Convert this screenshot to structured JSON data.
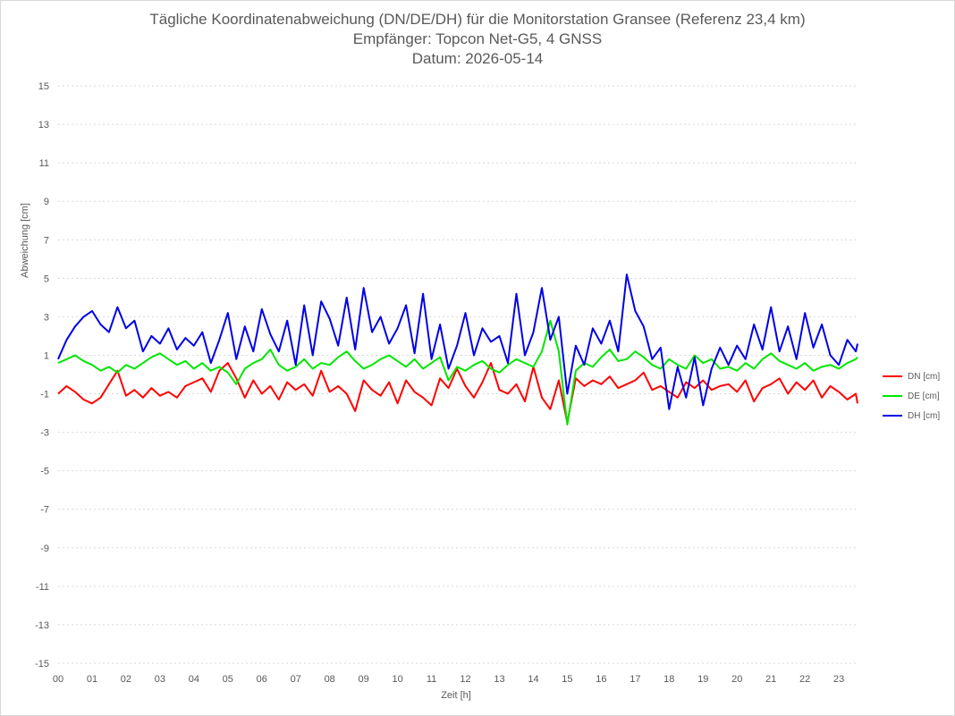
{
  "chart_data": {
    "type": "line",
    "title": "Tägliche Koordinatenabweichung (DN/DE/DH) für die Monitorstation Gransee (Referenz 23,4 km)",
    "subtitle": "Empfänger: Topcon Net-G5, 4 GNSS",
    "subtitle2": "Datum: 2026-05-14",
    "xlabel": "Zeit [h]",
    "ylabel": "Abweichung [cm]",
    "x_ticks": [
      "00",
      "01",
      "02",
      "03",
      "04",
      "05",
      "06",
      "07",
      "08",
      "09",
      "10",
      "11",
      "12",
      "13",
      "14",
      "15",
      "16",
      "17",
      "18",
      "19",
      "20",
      "21",
      "22",
      "23"
    ],
    "y_ticks": [
      "15",
      "13",
      "11",
      "9",
      "7",
      "5",
      "3",
      "1",
      "-1",
      "-3",
      "-5",
      "-7",
      "-9",
      "-11",
      "-13",
      "-15"
    ],
    "xlim": [
      0,
      23.55
    ],
    "ylim": [
      -15,
      15
    ],
    "grid": true,
    "legend_position": "right",
    "series": [
      {
        "name": "DN [cm]",
        "color": "#ff0000",
        "x": [
          0,
          0.25,
          0.5,
          0.75,
          1,
          1.25,
          1.5,
          1.75,
          2,
          2.25,
          2.5,
          2.75,
          3,
          3.25,
          3.5,
          3.75,
          4,
          4.25,
          4.5,
          4.75,
          5,
          5.25,
          5.5,
          5.75,
          6,
          6.25,
          6.5,
          6.75,
          7,
          7.25,
          7.5,
          7.75,
          8,
          8.25,
          8.5,
          8.75,
          9,
          9.25,
          9.5,
          9.75,
          10,
          10.25,
          10.5,
          10.75,
          11,
          11.25,
          11.5,
          11.75,
          12,
          12.25,
          12.5,
          12.75,
          13,
          13.25,
          13.5,
          13.75,
          14,
          14.25,
          14.5,
          14.75,
          15,
          15.25,
          15.5,
          15.75,
          16,
          16.25,
          16.5,
          16.75,
          17,
          17.25,
          17.5,
          17.75,
          18,
          18.25,
          18.5,
          18.75,
          19,
          19.25,
          19.5,
          19.75,
          20,
          20.25,
          20.5,
          20.75,
          21,
          21.25,
          21.5,
          21.75,
          22,
          22.25,
          22.5,
          22.75,
          23,
          23.25,
          23.5,
          23.55
        ],
        "values": [
          -1.0,
          -0.6,
          -0.9,
          -1.3,
          -1.5,
          -1.2,
          -0.5,
          0.2,
          -1.1,
          -0.8,
          -1.2,
          -0.7,
          -1.1,
          -0.9,
          -1.2,
          -0.6,
          -0.4,
          -0.2,
          -0.9,
          0.2,
          0.6,
          -0.2,
          -1.2,
          -0.3,
          -1.0,
          -0.6,
          -1.3,
          -0.4,
          -0.8,
          -0.5,
          -1.1,
          0.2,
          -0.9,
          -0.6,
          -1.0,
          -1.9,
          -0.3,
          -0.8,
          -1.1,
          -0.4,
          -1.5,
          -0.3,
          -0.9,
          -1.2,
          -1.6,
          -0.2,
          -0.7,
          0.3,
          -0.6,
          -1.2,
          -0.4,
          0.6,
          -0.8,
          -1.0,
          -0.5,
          -1.4,
          0.4,
          -1.2,
          -1.8,
          -0.3,
          -2.5,
          -0.2,
          -0.6,
          -0.3,
          -0.5,
          -0.1,
          -0.7,
          -0.5,
          -0.3,
          0.1,
          -0.8,
          -0.6,
          -0.9,
          -1.2,
          -0.4,
          -0.7,
          -0.3,
          -0.8,
          -0.6,
          -0.5,
          -0.9,
          -0.3,
          -1.4,
          -0.7,
          -0.5,
          -0.2,
          -1.0,
          -0.4,
          -0.8,
          -0.3,
          -1.2,
          -0.6,
          -0.9,
          -1.3,
          -1.0,
          -1.5
        ]
      },
      {
        "name": "DE [cm]",
        "color": "#00e600",
        "x": [
          0,
          0.25,
          0.5,
          0.75,
          1,
          1.25,
          1.5,
          1.75,
          2,
          2.25,
          2.5,
          2.75,
          3,
          3.25,
          3.5,
          3.75,
          4,
          4.25,
          4.5,
          4.75,
          5,
          5.25,
          5.5,
          5.75,
          6,
          6.25,
          6.5,
          6.75,
          7,
          7.25,
          7.5,
          7.75,
          8,
          8.25,
          8.5,
          8.75,
          9,
          9.25,
          9.5,
          9.75,
          10,
          10.25,
          10.5,
          10.75,
          11,
          11.25,
          11.5,
          11.75,
          12,
          12.25,
          12.5,
          12.75,
          13,
          13.25,
          13.5,
          13.75,
          14,
          14.25,
          14.5,
          14.75,
          15,
          15.25,
          15.5,
          15.75,
          16,
          16.25,
          16.5,
          16.75,
          17,
          17.25,
          17.5,
          17.75,
          18,
          18.25,
          18.5,
          18.75,
          19,
          19.25,
          19.5,
          19.75,
          20,
          20.25,
          20.5,
          20.75,
          21,
          21.25,
          21.5,
          21.75,
          22,
          22.25,
          22.5,
          22.75,
          23,
          23.25,
          23.5,
          23.55
        ],
        "values": [
          0.6,
          0.8,
          1.0,
          0.7,
          0.5,
          0.2,
          0.4,
          0.1,
          0.5,
          0.3,
          0.6,
          0.9,
          1.1,
          0.8,
          0.5,
          0.7,
          0.3,
          0.6,
          0.2,
          0.4,
          0.1,
          -0.5,
          0.3,
          0.6,
          0.8,
          1.3,
          0.5,
          0.2,
          0.4,
          0.8,
          0.3,
          0.6,
          0.5,
          0.9,
          1.2,
          0.7,
          0.3,
          0.5,
          0.8,
          1.0,
          0.7,
          0.4,
          0.8,
          0.3,
          0.6,
          0.9,
          -0.3,
          0.4,
          0.2,
          0.5,
          0.7,
          0.3,
          0.1,
          0.5,
          0.8,
          0.6,
          0.4,
          1.2,
          2.8,
          1.2,
          -2.6,
          0.2,
          0.6,
          0.4,
          0.9,
          1.3,
          0.7,
          0.8,
          1.2,
          0.9,
          0.5,
          0.3,
          0.8,
          0.5,
          0.3,
          1.0,
          0.6,
          0.8,
          0.3,
          0.4,
          0.2,
          0.6,
          0.3,
          0.8,
          1.1,
          0.7,
          0.5,
          0.3,
          0.6,
          0.2,
          0.4,
          0.5,
          0.3,
          0.6,
          0.8,
          0.9
        ]
      },
      {
        "name": "DH [cm]",
        "color": "#0000e6",
        "x": [
          0,
          0.25,
          0.5,
          0.75,
          1,
          1.25,
          1.5,
          1.75,
          2,
          2.25,
          2.5,
          2.75,
          3,
          3.25,
          3.5,
          3.75,
          4,
          4.25,
          4.5,
          4.75,
          5,
          5.25,
          5.5,
          5.75,
          6,
          6.25,
          6.5,
          6.75,
          7,
          7.25,
          7.5,
          7.75,
          8,
          8.25,
          8.5,
          8.75,
          9,
          9.25,
          9.5,
          9.75,
          10,
          10.25,
          10.5,
          10.75,
          11,
          11.25,
          11.5,
          11.75,
          12,
          12.25,
          12.5,
          12.75,
          13,
          13.25,
          13.5,
          13.75,
          14,
          14.25,
          14.5,
          14.75,
          15,
          15.25,
          15.5,
          15.75,
          16,
          16.25,
          16.5,
          16.75,
          17,
          17.25,
          17.5,
          17.75,
          18,
          18.25,
          18.5,
          18.75,
          19,
          19.25,
          19.5,
          19.75,
          20,
          20.25,
          20.5,
          20.75,
          21,
          21.25,
          21.5,
          21.75,
          22,
          22.25,
          22.5,
          22.75,
          23,
          23.25,
          23.5,
          23.55
        ],
        "values": [
          0.8,
          1.8,
          2.5,
          3.0,
          3.3,
          2.6,
          2.2,
          3.5,
          2.4,
          2.8,
          1.2,
          2.0,
          1.6,
          2.4,
          1.3,
          1.9,
          1.5,
          2.2,
          0.6,
          1.8,
          3.2,
          0.8,
          2.5,
          1.2,
          3.4,
          2.1,
          1.2,
          2.8,
          0.5,
          3.6,
          1.0,
          3.8,
          2.9,
          1.5,
          4.0,
          1.3,
          4.5,
          2.2,
          3.0,
          1.6,
          2.4,
          3.6,
          1.1,
          4.2,
          0.8,
          2.6,
          0.3,
          1.5,
          3.2,
          1.0,
          2.4,
          1.7,
          2.0,
          0.6,
          4.2,
          1.0,
          2.2,
          4.5,
          1.8,
          3.0,
          -1.0,
          1.5,
          0.5,
          2.4,
          1.6,
          2.8,
          1.2,
          5.2,
          3.3,
          2.5,
          0.8,
          1.4,
          -1.8,
          0.4,
          -1.2,
          0.9,
          -1.6,
          0.3,
          1.4,
          0.5,
          1.5,
          0.8,
          2.6,
          1.3,
          3.5,
          1.2,
          2.5,
          0.8,
          3.2,
          1.4,
          2.6,
          1.0,
          0.5,
          1.8,
          1.2,
          1.6
        ]
      }
    ]
  }
}
